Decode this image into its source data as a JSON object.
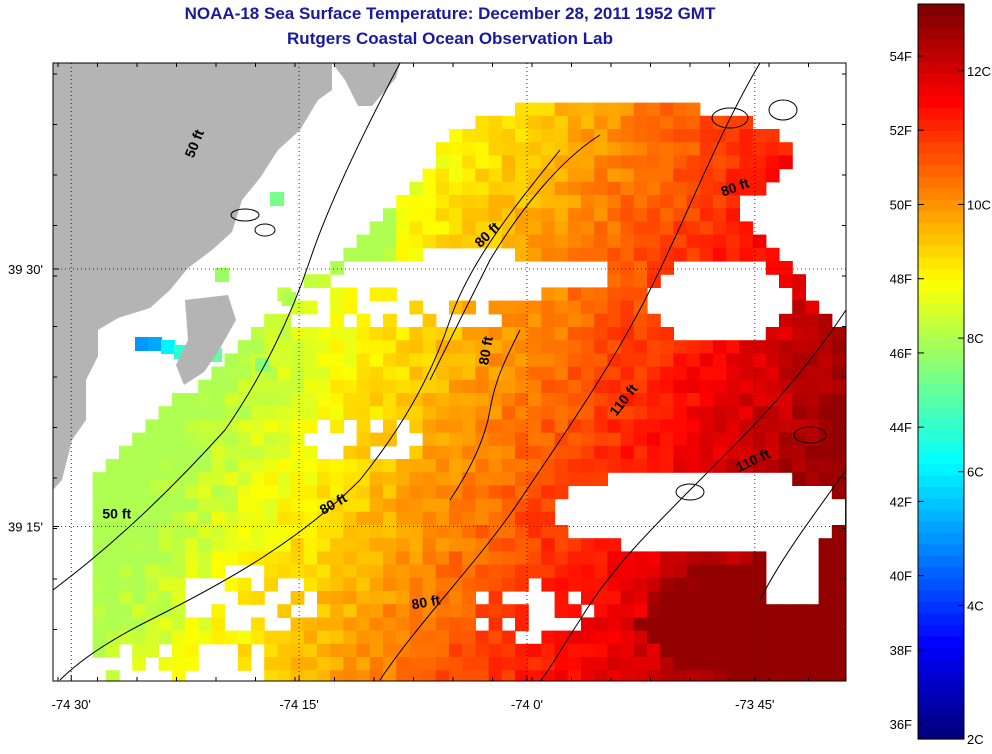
{
  "title": "NOAA-18 Sea Surface Temperature:  December 28, 2011 1952 GMT",
  "subtitle": "Rutgers Coastal Ocean Observation Lab",
  "map": {
    "lon_range": [
      -74.52,
      -73.65
    ],
    "lat_range": [
      39.1,
      39.7
    ],
    "x_ticks": [
      {
        "value": -74.5,
        "label": "-74 30'"
      },
      {
        "value": -74.25,
        "label": "-74 15'"
      },
      {
        "value": -74.0,
        "label": "-74 0'"
      },
      {
        "value": -73.75,
        "label": "-73 45'"
      }
    ],
    "y_ticks": [
      {
        "value": 39.5,
        "label": "39 30'"
      },
      {
        "value": 39.25,
        "label": "39 15'"
      }
    ],
    "grid": "dotted",
    "land_color": "#b4b4b4",
    "contour_labels": [
      {
        "text": "50 ft",
        "lon": -74.36,
        "lat": 39.62,
        "angle": -68
      },
      {
        "text": "50 ft",
        "lon": -74.45,
        "lat": 39.258,
        "angle": 0
      },
      {
        "text": "80 ft",
        "lon": -74.04,
        "lat": 39.53,
        "angle": -45
      },
      {
        "text": "80 ft",
        "lon": -73.77,
        "lat": 39.575,
        "angle": -20
      },
      {
        "text": "80 ft",
        "lon": -74.04,
        "lat": 39.42,
        "angle": -80
      },
      {
        "text": "80 ft",
        "lon": -74.21,
        "lat": 39.268,
        "angle": -30
      },
      {
        "text": "80 ft",
        "lon": -74.11,
        "lat": 39.172,
        "angle": -10
      },
      {
        "text": "110 ft",
        "lon": -73.89,
        "lat": 39.37,
        "angle": -52
      },
      {
        "text": "110 ft",
        "lon": -73.75,
        "lat": 39.31,
        "angle": -25
      }
    ]
  },
  "colorbar": {
    "range_c": [
      2,
      13
    ],
    "celsius_ticks": [
      {
        "value": 2,
        "label": "2C"
      },
      {
        "value": 4,
        "label": "4C"
      },
      {
        "value": 6,
        "label": "6C"
      },
      {
        "value": 8,
        "label": "8C"
      },
      {
        "value": 10,
        "label": "10C"
      },
      {
        "value": 12,
        "label": "12C"
      }
    ],
    "fahrenheit_ticks": [
      {
        "value": 36,
        "label": "36F"
      },
      {
        "value": 38,
        "label": "38F"
      },
      {
        "value": 40,
        "label": "40F"
      },
      {
        "value": 42,
        "label": "42F"
      },
      {
        "value": 44,
        "label": "44F"
      },
      {
        "value": 46,
        "label": "46F"
      },
      {
        "value": 48,
        "label": "48F"
      },
      {
        "value": 50,
        "label": "50F"
      },
      {
        "value": 52,
        "label": "52F"
      },
      {
        "value": 54,
        "label": "54F"
      }
    ],
    "colormap": "jet"
  }
}
